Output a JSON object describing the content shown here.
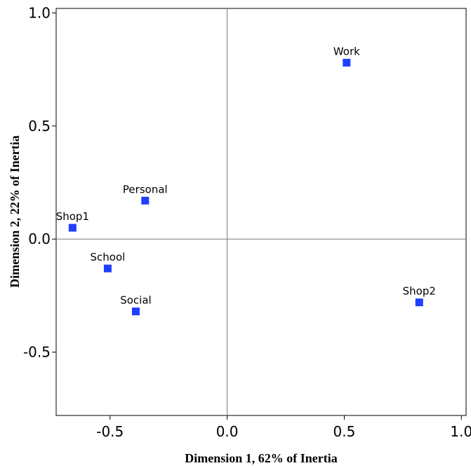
{
  "chart_data": {
    "type": "scatter",
    "xlabel": "Dimension 1, 62% of Inertia",
    "ylabel": "Dimension 2, 22% of Inertia",
    "xlim": [
      -0.73,
      1.02
    ],
    "ylim": [
      -0.78,
      1.02
    ],
    "x_ticks": [
      -0.5,
      0.0,
      0.5,
      1.0
    ],
    "x_tick_labels": [
      "-0.5",
      "0.0",
      "0.5",
      "1.0"
    ],
    "y_ticks": [
      -0.5,
      0.0,
      0.5,
      1.0
    ],
    "y_tick_labels": [
      "-0.5",
      "0.0",
      "0.5",
      "1.0"
    ],
    "reference_lines": {
      "x": 0.0,
      "y": 0.0
    },
    "grid": false,
    "marker": "square",
    "marker_color": "#1f3fff",
    "points": [
      {
        "label": "Work",
        "x": 0.51,
        "y": 0.78
      },
      {
        "label": "Personal",
        "x": -0.35,
        "y": 0.17
      },
      {
        "label": "Shop1",
        "x": -0.66,
        "y": 0.05
      },
      {
        "label": "School",
        "x": -0.51,
        "y": -0.13
      },
      {
        "label": "Social",
        "x": -0.39,
        "y": -0.32
      },
      {
        "label": "Shop2",
        "x": 0.82,
        "y": -0.28
      }
    ]
  }
}
